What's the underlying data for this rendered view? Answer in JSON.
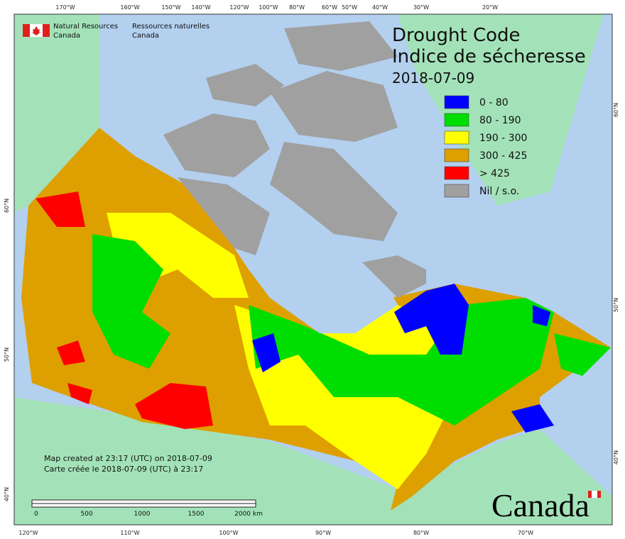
{
  "header": {
    "department_en": [
      "Natural Resources",
      "Canada"
    ],
    "department_fr": [
      "Ressources naturelles",
      "Canada"
    ]
  },
  "title": [
    "Drought Code",
    "Indice de sécheresse",
    "2018-07-09"
  ],
  "legend": [
    {
      "label": "0 - 80",
      "color": "#0000ff"
    },
    {
      "label": "80 - 190",
      "color": "#00dd00"
    },
    {
      "label": "190 - 300",
      "color": "#ffff00"
    },
    {
      "label": "300 - 425",
      "color": "#dda000"
    },
    {
      "label": "> 425",
      "color": "#ff0000"
    },
    {
      "label": "Nil / s.o.",
      "color": "#a0a0a0"
    }
  ],
  "top_ticks": [
    "170°W",
    "160°W",
    "150°W",
    "140°W",
    "120°W",
    "100°W",
    "80°W",
    "60°W",
    "50°W",
    "40°W",
    "30°W",
    "20°W"
  ],
  "bottom_ticks": [
    "120°W",
    "110°W",
    "100°W",
    "90°W",
    "80°W",
    "70°W"
  ],
  "left_ticks": [
    "60°N",
    "50°N",
    "40°N"
  ],
  "right_ticks": [
    "60°N",
    "50°N",
    "40°N"
  ],
  "footer": [
    "Map created at 23:17 (UTC) on 2018-07-09",
    "Carte créée le 2018-07-09 (UTC) à 23:17"
  ],
  "scale_bar": [
    "0",
    "500",
    "1000",
    "1500",
    "2000 km"
  ],
  "wordmark": "Canada"
}
